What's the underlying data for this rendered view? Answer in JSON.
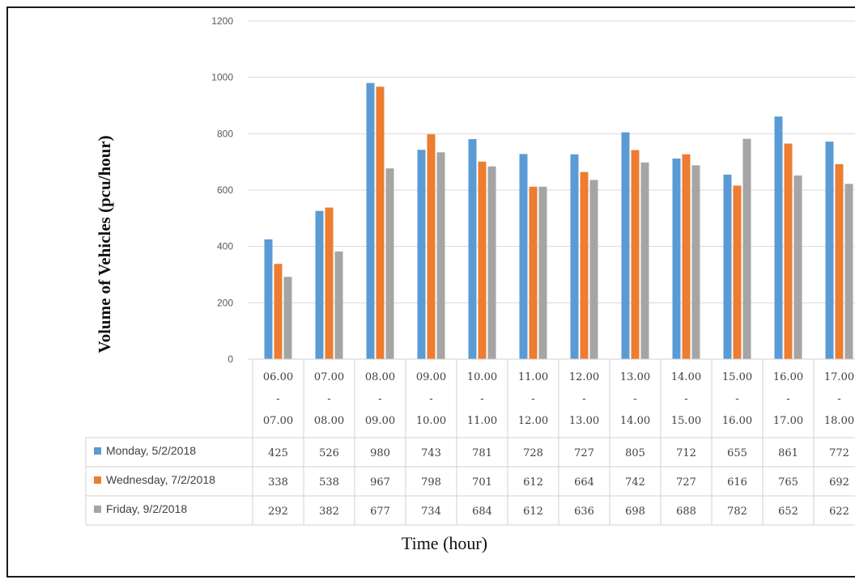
{
  "chart_data": {
    "type": "bar",
    "xlabel": "Time (hour)",
    "ylabel": "Volume of Vehicles (pcu/hour)",
    "ylim": [
      0,
      1200
    ],
    "yticks": [
      0,
      200,
      400,
      600,
      800,
      1000,
      1200
    ],
    "grid": true,
    "legend": "data-table",
    "categories": [
      {
        "start": "06.00",
        "sep": "-",
        "end": "07.00"
      },
      {
        "start": "07.00",
        "sep": "-",
        "end": "08.00"
      },
      {
        "start": "08.00",
        "sep": "-",
        "end": "09.00"
      },
      {
        "start": "09.00",
        "sep": "-",
        "end": "10.00"
      },
      {
        "start": "10.00",
        "sep": "-",
        "end": "11.00"
      },
      {
        "start": "11.00",
        "sep": "-",
        "end": "12.00"
      },
      {
        "start": "12.00",
        "sep": "-",
        "end": "13.00"
      },
      {
        "start": "13.00",
        "sep": "-",
        "end": "14.00"
      },
      {
        "start": "14.00",
        "sep": "-",
        "end": "15.00"
      },
      {
        "start": "15.00",
        "sep": "-",
        "end": "16.00"
      },
      {
        "start": "16.00",
        "sep": "-",
        "end": "17.00"
      },
      {
        "start": "17.00",
        "sep": "-",
        "end": "18.00"
      }
    ],
    "series": [
      {
        "name": "Monday, 5/2/2018",
        "color": "#5B9BD5",
        "values": [
          425,
          526,
          980,
          743,
          781,
          728,
          727,
          805,
          712,
          655,
          861,
          772
        ]
      },
      {
        "name": "Wednesday, 7/2/2018",
        "color": "#ED7D31",
        "values": [
          338,
          538,
          967,
          798,
          701,
          612,
          664,
          742,
          727,
          616,
          765,
          692
        ]
      },
      {
        "name": "Friday, 9/2/2018",
        "color": "#A5A5A5",
        "values": [
          292,
          382,
          677,
          734,
          684,
          612,
          636,
          698,
          688,
          782,
          652,
          622
        ]
      }
    ]
  }
}
